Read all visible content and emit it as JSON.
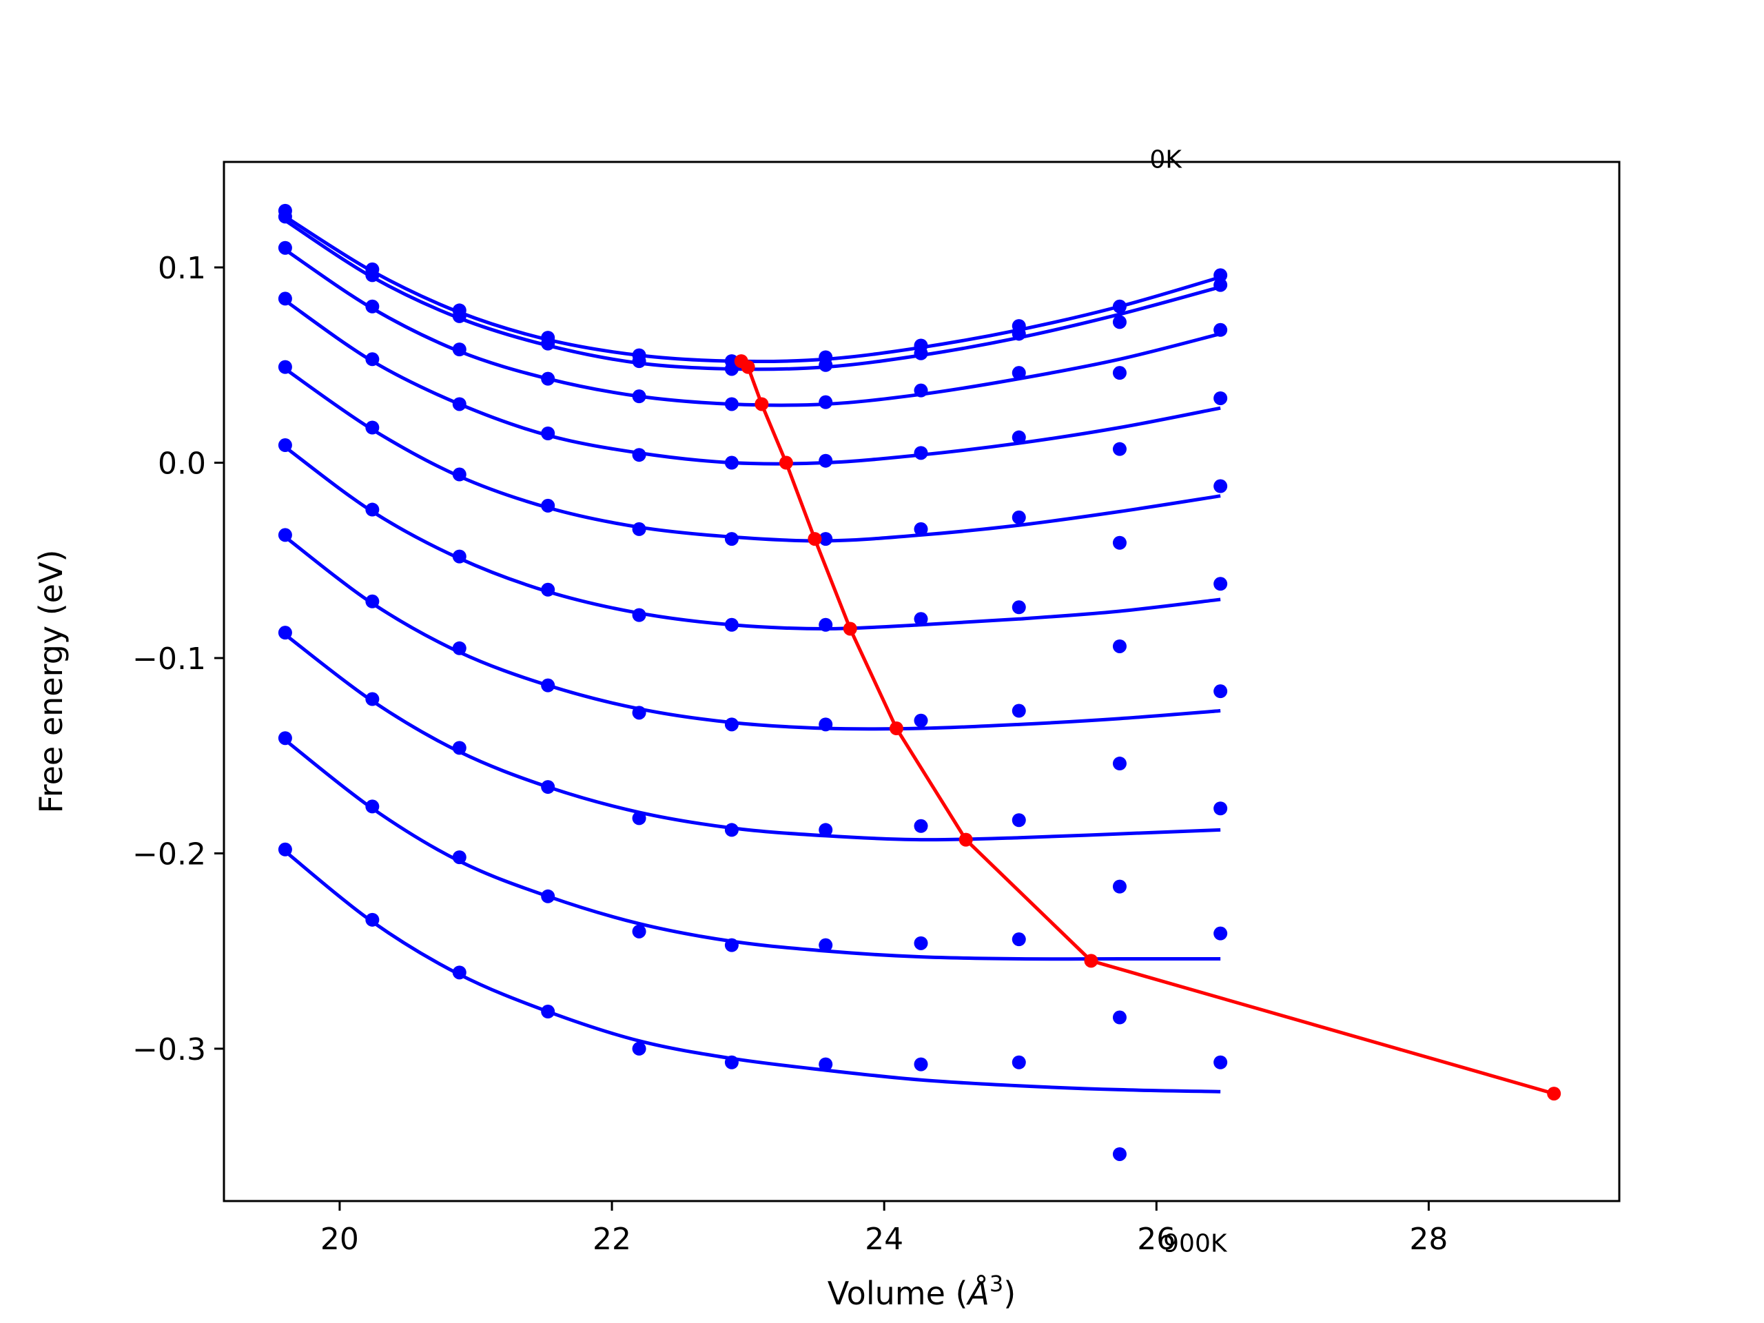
{
  "chart_data": {
    "type": "scatter",
    "title": "",
    "xlabel": "Volume (",
    "xlabel_symbol": "Å",
    "xlabel_exp": "3",
    "xlabel_close": ")",
    "ylabel": "Free energy (eV)",
    "xlim": [
      19.15,
      29.4
    ],
    "ylim": [
      -0.378,
      0.154
    ],
    "x_ticks": [
      20,
      22,
      24,
      26,
      28
    ],
    "x_tick_labels": [
      "20",
      "22",
      "24",
      "26",
      "28"
    ],
    "y_ticks": [
      0.1,
      0.0,
      -0.1,
      -0.2,
      -0.3
    ],
    "y_tick_labels": [
      "0.1",
      "0.0",
      "−0.1",
      "−0.2",
      "−0.3"
    ],
    "grid": false,
    "annotations": [
      {
        "text": "0K",
        "x": 25.95,
        "y": 0.151
      },
      {
        "text": "900K",
        "x": 26.05,
        "y": -0.404
      }
    ],
    "data_color": "#0000ff",
    "minimum_color": "#ff0000",
    "volumes": [
      19.6,
      20.24,
      20.88,
      21.53,
      22.2,
      22.88,
      23.57,
      24.27,
      24.99,
      25.73,
      26.47
    ],
    "series": [
      {
        "points": [
          0.129,
          0.099,
          0.078,
          0.064,
          0.055,
          0.052,
          0.054,
          0.06,
          0.07,
          0.08,
          0.096
        ],
        "fit": [
          0.126,
          0.098,
          0.077,
          0.063,
          0.055,
          0.052,
          0.053,
          0.059,
          0.068,
          0.08,
          0.095
        ]
      },
      {
        "points": [
          0.126,
          0.096,
          0.075,
          0.061,
          0.052,
          0.048,
          0.05,
          0.056,
          0.066,
          0.072,
          0.091
        ],
        "fit": [
          0.124,
          0.095,
          0.074,
          0.06,
          0.051,
          0.048,
          0.049,
          0.055,
          0.064,
          0.076,
          0.09
        ]
      },
      {
        "points": [
          0.11,
          0.08,
          0.058,
          0.043,
          0.034,
          0.03,
          0.031,
          0.037,
          0.046,
          0.046,
          0.068
        ],
        "fit": [
          0.109,
          0.079,
          0.057,
          0.043,
          0.034,
          0.03,
          0.03,
          0.035,
          0.043,
          0.053,
          0.066
        ]
      },
      {
        "points": [
          0.084,
          0.053,
          0.03,
          0.015,
          0.004,
          0.0,
          0.001,
          0.005,
          0.013,
          0.007,
          0.033
        ],
        "fit": [
          0.083,
          0.052,
          0.03,
          0.014,
          0.005,
          0.0,
          0.0,
          0.004,
          0.01,
          0.018,
          0.028
        ]
      },
      {
        "points": [
          0.009,
          -0.024,
          -0.048,
          -0.065,
          -0.078,
          -0.083,
          -0.083,
          -0.08,
          -0.074,
          -0.094,
          -0.062
        ],
        "fit": [
          0.008,
          -0.025,
          -0.049,
          -0.066,
          -0.077,
          -0.083,
          -0.085,
          -0.083,
          -0.08,
          -0.076,
          -0.07
        ]
      },
      {
        "points": [
          0.049,
          0.018,
          -0.006,
          -0.022,
          -0.034,
          -0.039,
          -0.039,
          -0.034,
          -0.028,
          -0.041,
          -0.012
        ],
        "fit": [
          0.048,
          0.017,
          -0.007,
          -0.023,
          -0.033,
          -0.038,
          -0.04,
          -0.037,
          -0.032,
          -0.025,
          -0.017
        ]
      },
      {
        "points": [
          -0.037,
          -0.071,
          -0.095,
          -0.114,
          -0.128,
          -0.134,
          -0.134,
          -0.132,
          -0.127,
          -0.154,
          -0.117
        ],
        "fit": [
          -0.038,
          -0.072,
          -0.097,
          -0.114,
          -0.126,
          -0.133,
          -0.136,
          -0.136,
          -0.134,
          -0.131,
          -0.127
        ]
      },
      {
        "points": [
          -0.087,
          -0.121,
          -0.146,
          -0.166,
          -0.182,
          -0.188,
          -0.188,
          -0.186,
          -0.183,
          -0.217,
          -0.177
        ],
        "fit": [
          -0.088,
          -0.122,
          -0.148,
          -0.166,
          -0.179,
          -0.187,
          -0.191,
          -0.193,
          -0.192,
          -0.19,
          -0.188
        ]
      },
      {
        "points": [
          -0.141,
          -0.176,
          -0.202,
          -0.222,
          -0.24,
          -0.247,
          -0.247,
          -0.246,
          -0.244,
          -0.284,
          -0.241
        ],
        "fit": [
          -0.142,
          -0.177,
          -0.204,
          -0.222,
          -0.236,
          -0.245,
          -0.25,
          -0.253,
          -0.254,
          -0.254,
          -0.254
        ]
      },
      {
        "points": [
          -0.198,
          -0.234,
          -0.261,
          -0.281,
          -0.3,
          -0.307,
          -0.308,
          -0.308,
          -0.307,
          -0.354,
          -0.307
        ],
        "fit": [
          -0.199,
          -0.235,
          -0.262,
          -0.281,
          -0.296,
          -0.305,
          -0.311,
          -0.316,
          -0.319,
          -0.321,
          -0.322
        ]
      }
    ],
    "minimum_curve": {
      "x": [
        22.95,
        23.0,
        23.1,
        23.28,
        23.49,
        23.75,
        24.09,
        24.6,
        25.52,
        28.92
      ],
      "y": [
        0.052,
        0.049,
        0.03,
        0.0,
        -0.039,
        -0.085,
        -0.136,
        -0.193,
        -0.255,
        -0.323
      ]
    }
  }
}
